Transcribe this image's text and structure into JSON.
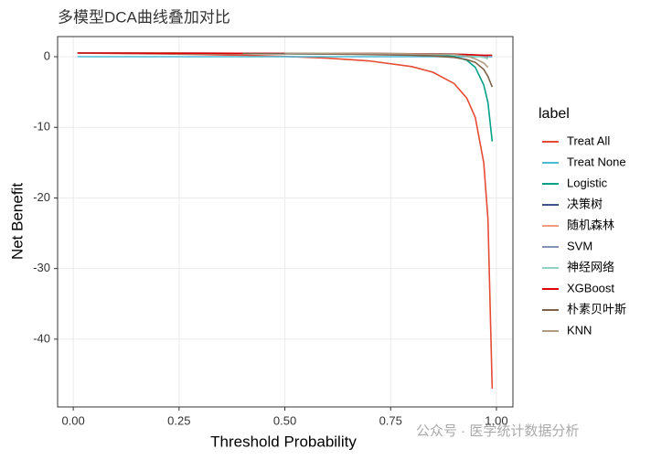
{
  "chart_data": {
    "type": "line",
    "title": "多模型DCA曲线叠加对比",
    "x_label": "Threshold Probability",
    "y_label": "Net Benefit",
    "legend_title": "label",
    "watermark": "公众号 · 医学统计数据分析",
    "x": [
      0.01,
      0.1,
      0.2,
      0.3,
      0.4,
      0.5,
      0.6,
      0.7,
      0.8,
      0.85,
      0.9,
      0.93,
      0.95,
      0.97,
      0.98,
      0.99
    ],
    "series": [
      {
        "name": "Treat All",
        "color": "#E64B35",
        "values": [
          0.515,
          0.467,
          0.4,
          0.314,
          0.2,
          0.04,
          -0.2,
          -0.6,
          -1.4,
          -2.2,
          -3.8,
          -5.86,
          -8.6,
          -15.0,
          -23.0,
          -47.0
        ]
      },
      {
        "name": "Treat None",
        "color": "#4DBBD5",
        "values": [
          0,
          0,
          0,
          0,
          0,
          0,
          0,
          0,
          0,
          0,
          0,
          0,
          0,
          0,
          0,
          0
        ]
      },
      {
        "name": "Logistic",
        "color": "#00A087",
        "values": [
          0.51,
          0.49,
          0.47,
          0.45,
          0.43,
          0.41,
          0.38,
          0.34,
          0.28,
          0.2,
          0.05,
          -0.5,
          -1.5,
          -4,
          -6.5,
          -12
        ]
      },
      {
        "name": "决策树",
        "color": "#3C5488",
        "values": [
          0.5,
          0.5,
          0.49,
          0.49,
          0.48,
          0.47,
          0.46,
          0.44,
          0.42,
          0.4,
          0.36,
          0.3,
          0.2,
          0.1,
          0.05,
          null
        ]
      },
      {
        "name": "随机森林",
        "color": "#F39B7F",
        "values": [
          0.51,
          0.5,
          0.49,
          0.48,
          0.47,
          0.46,
          0.44,
          0.42,
          0.39,
          0.37,
          0.33,
          0.25,
          0.15,
          0.0,
          -0.2,
          null
        ]
      },
      {
        "name": "SVM",
        "color": "#8491B4",
        "values": [
          0.5,
          0.5,
          0.49,
          0.48,
          0.47,
          0.46,
          0.45,
          0.43,
          0.4,
          0.38,
          0.34,
          0.28,
          0.2,
          0.1,
          0.0,
          null
        ]
      },
      {
        "name": "神经网络",
        "color": "#91D1C2",
        "values": [
          0.5,
          0.49,
          0.48,
          0.47,
          0.46,
          0.44,
          0.42,
          0.4,
          0.36,
          0.33,
          0.28,
          0.2,
          0.1,
          -0.1,
          -0.3,
          null
        ]
      },
      {
        "name": "XGBoost",
        "color": "#DC0000",
        "values": [
          0.52,
          0.51,
          0.5,
          0.49,
          0.48,
          0.47,
          0.46,
          0.44,
          0.41,
          0.39,
          0.35,
          0.3,
          0.25,
          0.2,
          0.2,
          0.2
        ]
      },
      {
        "name": "朴素贝叶斯",
        "color": "#7E6148",
        "values": [
          null,
          null,
          null,
          null,
          0.45,
          0.42,
          0.38,
          0.3,
          0.2,
          0.1,
          -0.1,
          -0.4,
          -0.8,
          -1.8,
          -2.8,
          -4.3
        ]
      },
      {
        "name": "KNN",
        "color": "#B09C85",
        "values": [
          null,
          null,
          null,
          null,
          null,
          0.5,
          0.48,
          0.45,
          0.4,
          0.35,
          0.3,
          0.1,
          -0.3,
          -0.9,
          -1.5,
          null
        ]
      }
    ],
    "xlim": [
      -0.037,
      1.039
    ],
    "ylim": [
      -49.6,
      2.85
    ],
    "xticks": [
      {
        "value": 0,
        "label": "0.00"
      },
      {
        "value": 0.25,
        "label": "0.25"
      },
      {
        "value": 0.5,
        "label": "0.50"
      },
      {
        "value": 0.75,
        "label": "0.75"
      },
      {
        "value": 1,
        "label": "1.00"
      }
    ],
    "yticks": [
      -40,
      -30,
      -20,
      -10,
      0
    ],
    "grid": true,
    "legend_position": "right"
  }
}
